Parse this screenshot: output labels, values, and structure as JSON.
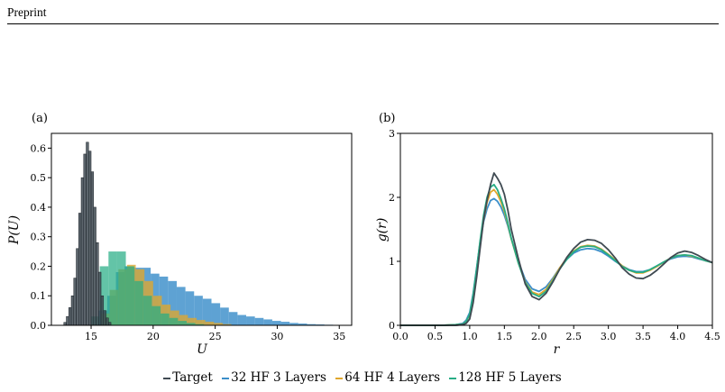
{
  "header": {
    "text": "Preprint"
  },
  "colors": {
    "target": "#3f4a52",
    "hf32": "#3b8ec9",
    "hf64": "#e0a72d",
    "hf128": "#27ad85"
  },
  "panels": [
    {
      "label": "(a)",
      "xlabel": "U",
      "ylabel": "P(U)"
    },
    {
      "label": "(b)",
      "xlabel": "r",
      "ylabel": "g(r)"
    }
  ],
  "legend": [
    {
      "label": "Target",
      "color": "#3f4a52"
    },
    {
      "label": "32 HF 3 Layers",
      "color": "#3b8ec9"
    },
    {
      "label": "64 HF 4 Layers",
      "color": "#e0a72d"
    },
    {
      "label": "128 HF 5 Layers",
      "color": "#27ad85"
    }
  ],
  "chart_data": [
    {
      "type": "histogram",
      "panel": "(a)",
      "xlabel": "U",
      "ylabel": "P(U)",
      "xlim": [
        11.8,
        36.0
      ],
      "ylim": [
        0,
        0.65
      ],
      "xticks": [
        15,
        20,
        25,
        30,
        35
      ],
      "yticks": [
        0.0,
        0.1,
        0.2,
        0.3,
        0.4,
        0.5,
        0.6
      ],
      "series": [
        {
          "name": "Target",
          "bins": [
            [
              12.8,
              13.0,
              0.01
            ],
            [
              13.0,
              13.2,
              0.03
            ],
            [
              13.2,
              13.4,
              0.06
            ],
            [
              13.4,
              13.6,
              0.1
            ],
            [
              13.6,
              13.8,
              0.16
            ],
            [
              13.8,
              14.0,
              0.26
            ],
            [
              14.0,
              14.2,
              0.38
            ],
            [
              14.2,
              14.4,
              0.5
            ],
            [
              14.4,
              14.6,
              0.58
            ],
            [
              14.6,
              14.8,
              0.62
            ],
            [
              14.8,
              15.0,
              0.59
            ],
            [
              15.0,
              15.2,
              0.52
            ],
            [
              15.2,
              15.4,
              0.4
            ],
            [
              15.4,
              15.6,
              0.28
            ],
            [
              15.6,
              15.8,
              0.18
            ],
            [
              15.8,
              16.0,
              0.1
            ],
            [
              16.0,
              16.2,
              0.05
            ],
            [
              16.2,
              16.4,
              0.025
            ],
            [
              16.4,
              16.6,
              0.01
            ]
          ]
        },
        {
          "name": "32 HF 3 Layers",
          "bins": [
            [
              15.6,
              16.3,
              0.05
            ],
            [
              16.3,
              17.0,
              0.1
            ],
            [
              17.0,
              17.7,
              0.18
            ],
            [
              17.7,
              18.4,
              0.2
            ],
            [
              18.4,
              19.1,
              0.195
            ],
            [
              19.1,
              19.8,
              0.195
            ],
            [
              19.8,
              20.5,
              0.175
            ],
            [
              20.5,
              21.2,
              0.165
            ],
            [
              21.2,
              21.9,
              0.15
            ],
            [
              21.9,
              22.6,
              0.13
            ],
            [
              22.6,
              23.3,
              0.115
            ],
            [
              23.3,
              24.0,
              0.1
            ],
            [
              24.0,
              24.7,
              0.09
            ],
            [
              24.7,
              25.4,
              0.075
            ],
            [
              25.4,
              26.1,
              0.06
            ],
            [
              26.1,
              26.8,
              0.045
            ],
            [
              26.8,
              27.5,
              0.035
            ],
            [
              27.5,
              28.2,
              0.03
            ],
            [
              28.2,
              28.9,
              0.025
            ],
            [
              28.9,
              29.6,
              0.02
            ],
            [
              29.6,
              30.3,
              0.015
            ],
            [
              30.3,
              31.0,
              0.012
            ],
            [
              31.0,
              31.7,
              0.008
            ],
            [
              31.7,
              32.4,
              0.006
            ],
            [
              32.4,
              33.1,
              0.004
            ],
            [
              33.1,
              33.8,
              0.003
            ],
            [
              33.8,
              34.5,
              0.002
            ],
            [
              34.5,
              35.2,
              0.001
            ]
          ]
        },
        {
          "name": "64 HF 4 Layers",
          "bins": [
            [
              15.8,
              16.5,
              0.04
            ],
            [
              16.5,
              17.2,
              0.12
            ],
            [
              17.2,
              17.9,
              0.19
            ],
            [
              17.9,
              18.6,
              0.205
            ],
            [
              18.6,
              19.3,
              0.19
            ],
            [
              19.3,
              20.0,
              0.15
            ],
            [
              20.0,
              20.7,
              0.1
            ],
            [
              20.7,
              21.4,
              0.07
            ],
            [
              21.4,
              22.1,
              0.05
            ],
            [
              22.1,
              22.8,
              0.035
            ],
            [
              22.8,
              23.5,
              0.025
            ],
            [
              23.5,
              24.2,
              0.018
            ],
            [
              24.2,
              24.9,
              0.012
            ],
            [
              24.9,
              25.6,
              0.008
            ],
            [
              25.6,
              26.3,
              0.004
            ]
          ]
        },
        {
          "name": "128 HF 5 Layers",
          "bins": [
            [
              15.0,
              15.7,
              0.03
            ],
            [
              15.7,
              16.4,
              0.2
            ],
            [
              16.4,
              17.1,
              0.25
            ],
            [
              17.1,
              17.8,
              0.25
            ],
            [
              17.8,
              18.5,
              0.2
            ],
            [
              18.5,
              19.2,
              0.15
            ],
            [
              19.2,
              19.9,
              0.1
            ],
            [
              19.9,
              20.6,
              0.065
            ],
            [
              20.6,
              21.3,
              0.04
            ],
            [
              21.3,
              22.0,
              0.025
            ],
            [
              22.0,
              22.7,
              0.015
            ],
            [
              22.7,
              23.4,
              0.008
            ],
            [
              23.4,
              24.1,
              0.004
            ]
          ]
        }
      ]
    },
    {
      "type": "line",
      "panel": "(b)",
      "xlabel": "r",
      "ylabel": "g(r)",
      "xlim": [
        0,
        4.5
      ],
      "ylim": [
        0,
        3
      ],
      "xticks": [
        0.0,
        0.5,
        1.0,
        1.5,
        2.0,
        2.5,
        3.0,
        3.5,
        4.0,
        4.5
      ],
      "yticks": [
        0,
        1,
        2,
        3
      ],
      "series": [
        {
          "name": "Target",
          "x": [
            0,
            0.6,
            0.8,
            0.9,
            0.95,
            1.0,
            1.05,
            1.1,
            1.15,
            1.2,
            1.25,
            1.3,
            1.35,
            1.4,
            1.45,
            1.5,
            1.55,
            1.6,
            1.7,
            1.8,
            1.9,
            2.0,
            2.1,
            2.2,
            2.3,
            2.4,
            2.5,
            2.6,
            2.7,
            2.8,
            2.9,
            3.0,
            3.1,
            3.2,
            3.3,
            3.4,
            3.5,
            3.6,
            3.7,
            3.8,
            3.9,
            4.0,
            4.1,
            4.2,
            4.3,
            4.4,
            4.5
          ],
          "y": [
            0,
            0,
            0,
            0.01,
            0.03,
            0.1,
            0.35,
            0.75,
            1.2,
            1.65,
            1.95,
            2.2,
            2.38,
            2.3,
            2.2,
            2.05,
            1.8,
            1.5,
            1.05,
            0.65,
            0.45,
            0.4,
            0.5,
            0.68,
            0.88,
            1.06,
            1.2,
            1.3,
            1.34,
            1.33,
            1.28,
            1.18,
            1.05,
            0.9,
            0.8,
            0.74,
            0.73,
            0.78,
            0.86,
            0.96,
            1.06,
            1.13,
            1.16,
            1.14,
            1.09,
            1.03,
            0.98
          ]
        },
        {
          "name": "32 HF 3 Layers",
          "x": [
            0,
            0.6,
            0.8,
            0.9,
            0.95,
            1.0,
            1.05,
            1.1,
            1.15,
            1.2,
            1.25,
            1.3,
            1.35,
            1.4,
            1.45,
            1.5,
            1.55,
            1.6,
            1.7,
            1.8,
            1.9,
            2.0,
            2.1,
            2.2,
            2.3,
            2.4,
            2.5,
            2.6,
            2.7,
            2.8,
            2.9,
            3.0,
            3.1,
            3.2,
            3.3,
            3.4,
            3.5,
            3.6,
            3.7,
            3.8,
            3.9,
            4.0,
            4.1,
            4.2,
            4.3,
            4.4,
            4.5
          ],
          "y": [
            0,
            0,
            0.01,
            0.03,
            0.08,
            0.2,
            0.5,
            0.9,
            1.3,
            1.62,
            1.82,
            1.95,
            1.98,
            1.94,
            1.85,
            1.72,
            1.55,
            1.35,
            1.0,
            0.72,
            0.57,
            0.53,
            0.6,
            0.74,
            0.9,
            1.03,
            1.13,
            1.18,
            1.2,
            1.19,
            1.15,
            1.08,
            1.0,
            0.93,
            0.87,
            0.84,
            0.84,
            0.87,
            0.93,
            0.99,
            1.04,
            1.07,
            1.08,
            1.07,
            1.04,
            1.01,
            0.98
          ]
        },
        {
          "name": "64 HF 4 Layers",
          "x": [
            0,
            0.6,
            0.8,
            0.9,
            0.95,
            1.0,
            1.05,
            1.1,
            1.15,
            1.2,
            1.25,
            1.3,
            1.35,
            1.4,
            1.45,
            1.5,
            1.55,
            1.6,
            1.7,
            1.8,
            1.9,
            2.0,
            2.1,
            2.2,
            2.3,
            2.4,
            2.5,
            2.6,
            2.7,
            2.8,
            2.9,
            3.0,
            3.1,
            3.2,
            3.3,
            3.4,
            3.5,
            3.6,
            3.7,
            3.8,
            3.9,
            4.0,
            4.1,
            4.2,
            4.3,
            4.4,
            4.5
          ],
          "y": [
            0,
            0,
            0.01,
            0.02,
            0.06,
            0.16,
            0.45,
            0.85,
            1.28,
            1.65,
            1.92,
            2.08,
            2.12,
            2.05,
            1.93,
            1.78,
            1.58,
            1.35,
            0.98,
            0.68,
            0.52,
            0.48,
            0.56,
            0.72,
            0.9,
            1.05,
            1.16,
            1.23,
            1.25,
            1.24,
            1.19,
            1.11,
            1.02,
            0.93,
            0.86,
            0.82,
            0.82,
            0.86,
            0.92,
            0.99,
            1.05,
            1.09,
            1.1,
            1.08,
            1.05,
            1.01,
            0.98
          ]
        },
        {
          "name": "128 HF 5 Layers",
          "x": [
            0,
            0.6,
            0.8,
            0.9,
            0.95,
            1.0,
            1.05,
            1.1,
            1.15,
            1.2,
            1.25,
            1.3,
            1.35,
            1.4,
            1.45,
            1.5,
            1.55,
            1.6,
            1.7,
            1.8,
            1.9,
            2.0,
            2.1,
            2.2,
            2.3,
            2.4,
            2.5,
            2.6,
            2.7,
            2.8,
            2.9,
            3.0,
            3.1,
            3.2,
            3.3,
            3.4,
            3.5,
            3.6,
            3.7,
            3.8,
            3.9,
            4.0,
            4.1,
            4.2,
            4.3,
            4.4,
            4.5
          ],
          "y": [
            0,
            0,
            0.01,
            0.02,
            0.06,
            0.17,
            0.47,
            0.88,
            1.32,
            1.72,
            2.0,
            2.16,
            2.2,
            2.12,
            1.98,
            1.82,
            1.6,
            1.36,
            0.98,
            0.67,
            0.5,
            0.45,
            0.53,
            0.7,
            0.88,
            1.03,
            1.15,
            1.22,
            1.24,
            1.23,
            1.18,
            1.1,
            1.01,
            0.92,
            0.86,
            0.83,
            0.83,
            0.87,
            0.93,
            0.99,
            1.05,
            1.09,
            1.1,
            1.09,
            1.05,
            1.01,
            0.98
          ]
        }
      ]
    }
  ]
}
